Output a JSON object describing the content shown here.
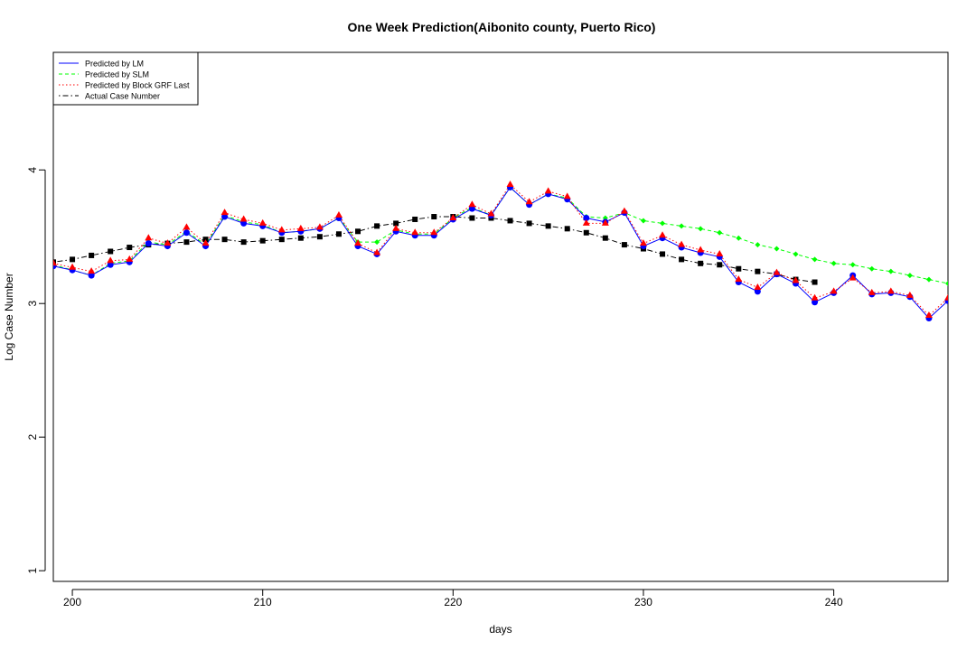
{
  "chart_data": {
    "type": "line",
    "title": "One Week Prediction(Aibonito county, Puerto Rico)",
    "xlabel": "days",
    "ylabel": "Log Case Number",
    "xlim": [
      199,
      246
    ],
    "ylim": [
      0.92,
      4.88
    ],
    "x_ticks": [
      200,
      210,
      220,
      230,
      240
    ],
    "y_ticks": [
      1,
      2,
      3,
      4
    ],
    "grid": false,
    "legend_position": "top-left",
    "legend": [
      {
        "label": "Predicted by LM",
        "color": "#0000ff",
        "dash": "solid"
      },
      {
        "label": "Predicted by SLM",
        "color": "#00ff00",
        "dash": "dashed"
      },
      {
        "label": "Predicted by Block GRF Last",
        "color": "#ff0000",
        "dash": "dotted"
      },
      {
        "label": "Actual Case Number",
        "color": "#000000",
        "dash": "dotdash"
      }
    ],
    "series": [
      {
        "name": "Predicted by LM",
        "color": "#0000ff",
        "marker": "circle",
        "x": [
          199,
          200,
          201,
          202,
          203,
          204,
          205,
          206,
          207,
          208,
          209,
          210,
          211,
          212,
          213,
          214,
          215,
          216,
          217,
          218,
          219,
          220,
          221,
          222,
          223,
          224,
          225,
          226,
          227,
          228,
          229,
          230,
          231,
          232,
          233,
          234,
          235,
          236,
          237,
          238,
          239,
          240,
          241,
          242,
          243,
          244,
          245,
          246
        ],
        "y": [
          3.28,
          3.25,
          3.21,
          3.29,
          3.31,
          3.45,
          3.43,
          3.53,
          3.43,
          3.65,
          3.6,
          3.58,
          3.53,
          3.54,
          3.56,
          3.64,
          3.43,
          3.37,
          3.54,
          3.51,
          3.51,
          3.63,
          3.71,
          3.66,
          3.87,
          3.74,
          3.82,
          3.78,
          3.64,
          3.61,
          3.68,
          3.43,
          3.49,
          3.42,
          3.38,
          3.35,
          3.16,
          3.09,
          3.22,
          3.15,
          3.01,
          3.08,
          3.21,
          3.07,
          3.08,
          3.05,
          2.89,
          3.02
        ]
      },
      {
        "name": "Predicted by SLM",
        "color": "#00ff00",
        "marker": "diamond",
        "x": [
          199,
          200,
          201,
          202,
          203,
          204,
          205,
          206,
          207,
          208,
          209,
          210,
          211,
          212,
          213,
          214,
          215,
          216,
          217,
          218,
          219,
          220,
          221,
          222,
          223,
          224,
          225,
          226,
          227,
          228,
          229,
          230,
          231,
          232,
          233,
          234,
          235,
          236,
          237,
          238,
          239,
          240,
          241,
          242,
          243,
          244,
          245,
          246
        ],
        "y": [
          3.29,
          3.25,
          3.21,
          3.3,
          3.32,
          3.46,
          3.44,
          3.54,
          3.44,
          3.66,
          3.61,
          3.59,
          3.53,
          3.54,
          3.56,
          3.64,
          3.46,
          3.46,
          3.55,
          3.52,
          3.52,
          3.64,
          3.72,
          3.66,
          3.87,
          3.74,
          3.82,
          3.79,
          3.65,
          3.64,
          3.68,
          3.62,
          3.6,
          3.58,
          3.56,
          3.53,
          3.49,
          3.44,
          3.41,
          3.37,
          3.33,
          3.3,
          3.29,
          3.26,
          3.24,
          3.21,
          3.18,
          3.15
        ]
      },
      {
        "name": "Predicted by Block GRF Last",
        "color": "#ff0000",
        "marker": "triangle",
        "x": [
          199,
          200,
          201,
          202,
          203,
          204,
          205,
          206,
          207,
          208,
          209,
          210,
          211,
          212,
          213,
          214,
          215,
          216,
          217,
          218,
          219,
          220,
          221,
          222,
          223,
          224,
          225,
          226,
          227,
          228,
          229,
          230,
          231,
          232,
          233,
          234,
          235,
          236,
          237,
          238,
          239,
          240,
          241,
          242,
          243,
          244,
          245,
          246
        ],
        "y": [
          3.3,
          3.27,
          3.24,
          3.32,
          3.33,
          3.49,
          3.45,
          3.57,
          3.45,
          3.68,
          3.63,
          3.6,
          3.55,
          3.56,
          3.57,
          3.66,
          3.45,
          3.38,
          3.56,
          3.53,
          3.53,
          3.64,
          3.74,
          3.67,
          3.89,
          3.76,
          3.84,
          3.8,
          3.6,
          3.6,
          3.69,
          3.45,
          3.51,
          3.44,
          3.4,
          3.37,
          3.18,
          3.12,
          3.23,
          3.17,
          3.04,
          3.09,
          3.19,
          3.08,
          3.09,
          3.06,
          2.91,
          3.04
        ]
      },
      {
        "name": "Actual Case Number",
        "color": "#000000",
        "marker": "square",
        "x": [
          199,
          200,
          201,
          202,
          203,
          204,
          205,
          206,
          207,
          208,
          209,
          210,
          211,
          212,
          213,
          214,
          215,
          216,
          217,
          218,
          219,
          220,
          221,
          222,
          223,
          224,
          225,
          226,
          227,
          228,
          229,
          230,
          231,
          232,
          233,
          234,
          235,
          236,
          237,
          238,
          239
        ],
        "y": [
          3.31,
          3.33,
          3.36,
          3.39,
          3.42,
          3.44,
          3.45,
          3.46,
          3.48,
          3.48,
          3.46,
          3.47,
          3.48,
          3.49,
          3.5,
          3.52,
          3.54,
          3.58,
          3.6,
          3.63,
          3.65,
          3.65,
          3.64,
          3.64,
          3.62,
          3.6,
          3.58,
          3.56,
          3.53,
          3.49,
          3.44,
          3.41,
          3.37,
          3.33,
          3.3,
          3.29,
          3.26,
          3.24,
          3.22,
          3.18,
          3.16
        ]
      }
    ]
  }
}
